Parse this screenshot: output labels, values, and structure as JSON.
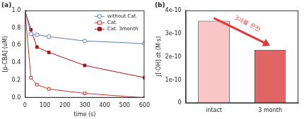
{
  "chart_data": [
    {
      "type": "line",
      "title": "(a)",
      "x_label": "time (s)",
      "y_label": "[p-CBA] (uM)",
      "x": [
        0,
        30,
        60,
        120,
        300,
        600
      ],
      "series": [
        {
          "name": "without Cat.",
          "color": "#5b7fb0",
          "marker": "open circle",
          "values": [
            1.0,
            0.73,
            0.72,
            0.7,
            0.65,
            0.62
          ]
        },
        {
          "name": "Cat.",
          "color": "#c0392b",
          "marker": "open square",
          "values": [
            1.0,
            0.23,
            0.15,
            0.1,
            0.05,
            0.0
          ]
        },
        {
          "name": "Cat. 3month",
          "color": "#a31515",
          "marker": "filled square",
          "values": [
            1.0,
            0.78,
            0.58,
            0.52,
            0.37,
            0.23
          ]
        }
      ],
      "xlim": [
        0,
        600
      ],
      "xticks": [
        0,
        100,
        200,
        300,
        400,
        500,
        600
      ],
      "ylim": [
        0,
        1.0
      ],
      "yticks": [
        {
          "value": 0,
          "label": "0.0"
        },
        0.2,
        0.4,
        0.6,
        0.8,
        {
          "value": 1.0,
          "label": "1.0"
        }
      ],
      "legend": "upper right",
      "grid": false
    },
    {
      "type": "bar",
      "title": "(b)",
      "y_label": "∫[·OH] dt (M·s)",
      "categories": [
        "intact",
        "3 month"
      ],
      "values": [
        3.55e-10,
        2.3e-10
      ],
      "colors": [
        "#f8c6c6",
        "#e06666"
      ],
      "ylim": [
        0,
        4e-10
      ],
      "yticks": [
        0,
        {
          "value": 1e-10,
          "label": "1e-10"
        },
        {
          "value": 2e-10,
          "label": "2e-10"
        },
        {
          "value": 3e-10,
          "label": "3e-10"
        },
        {
          "value": 4e-10,
          "label": "4e-10"
        }
      ],
      "annotation": "3개월 운전",
      "grid": false
    }
  ]
}
